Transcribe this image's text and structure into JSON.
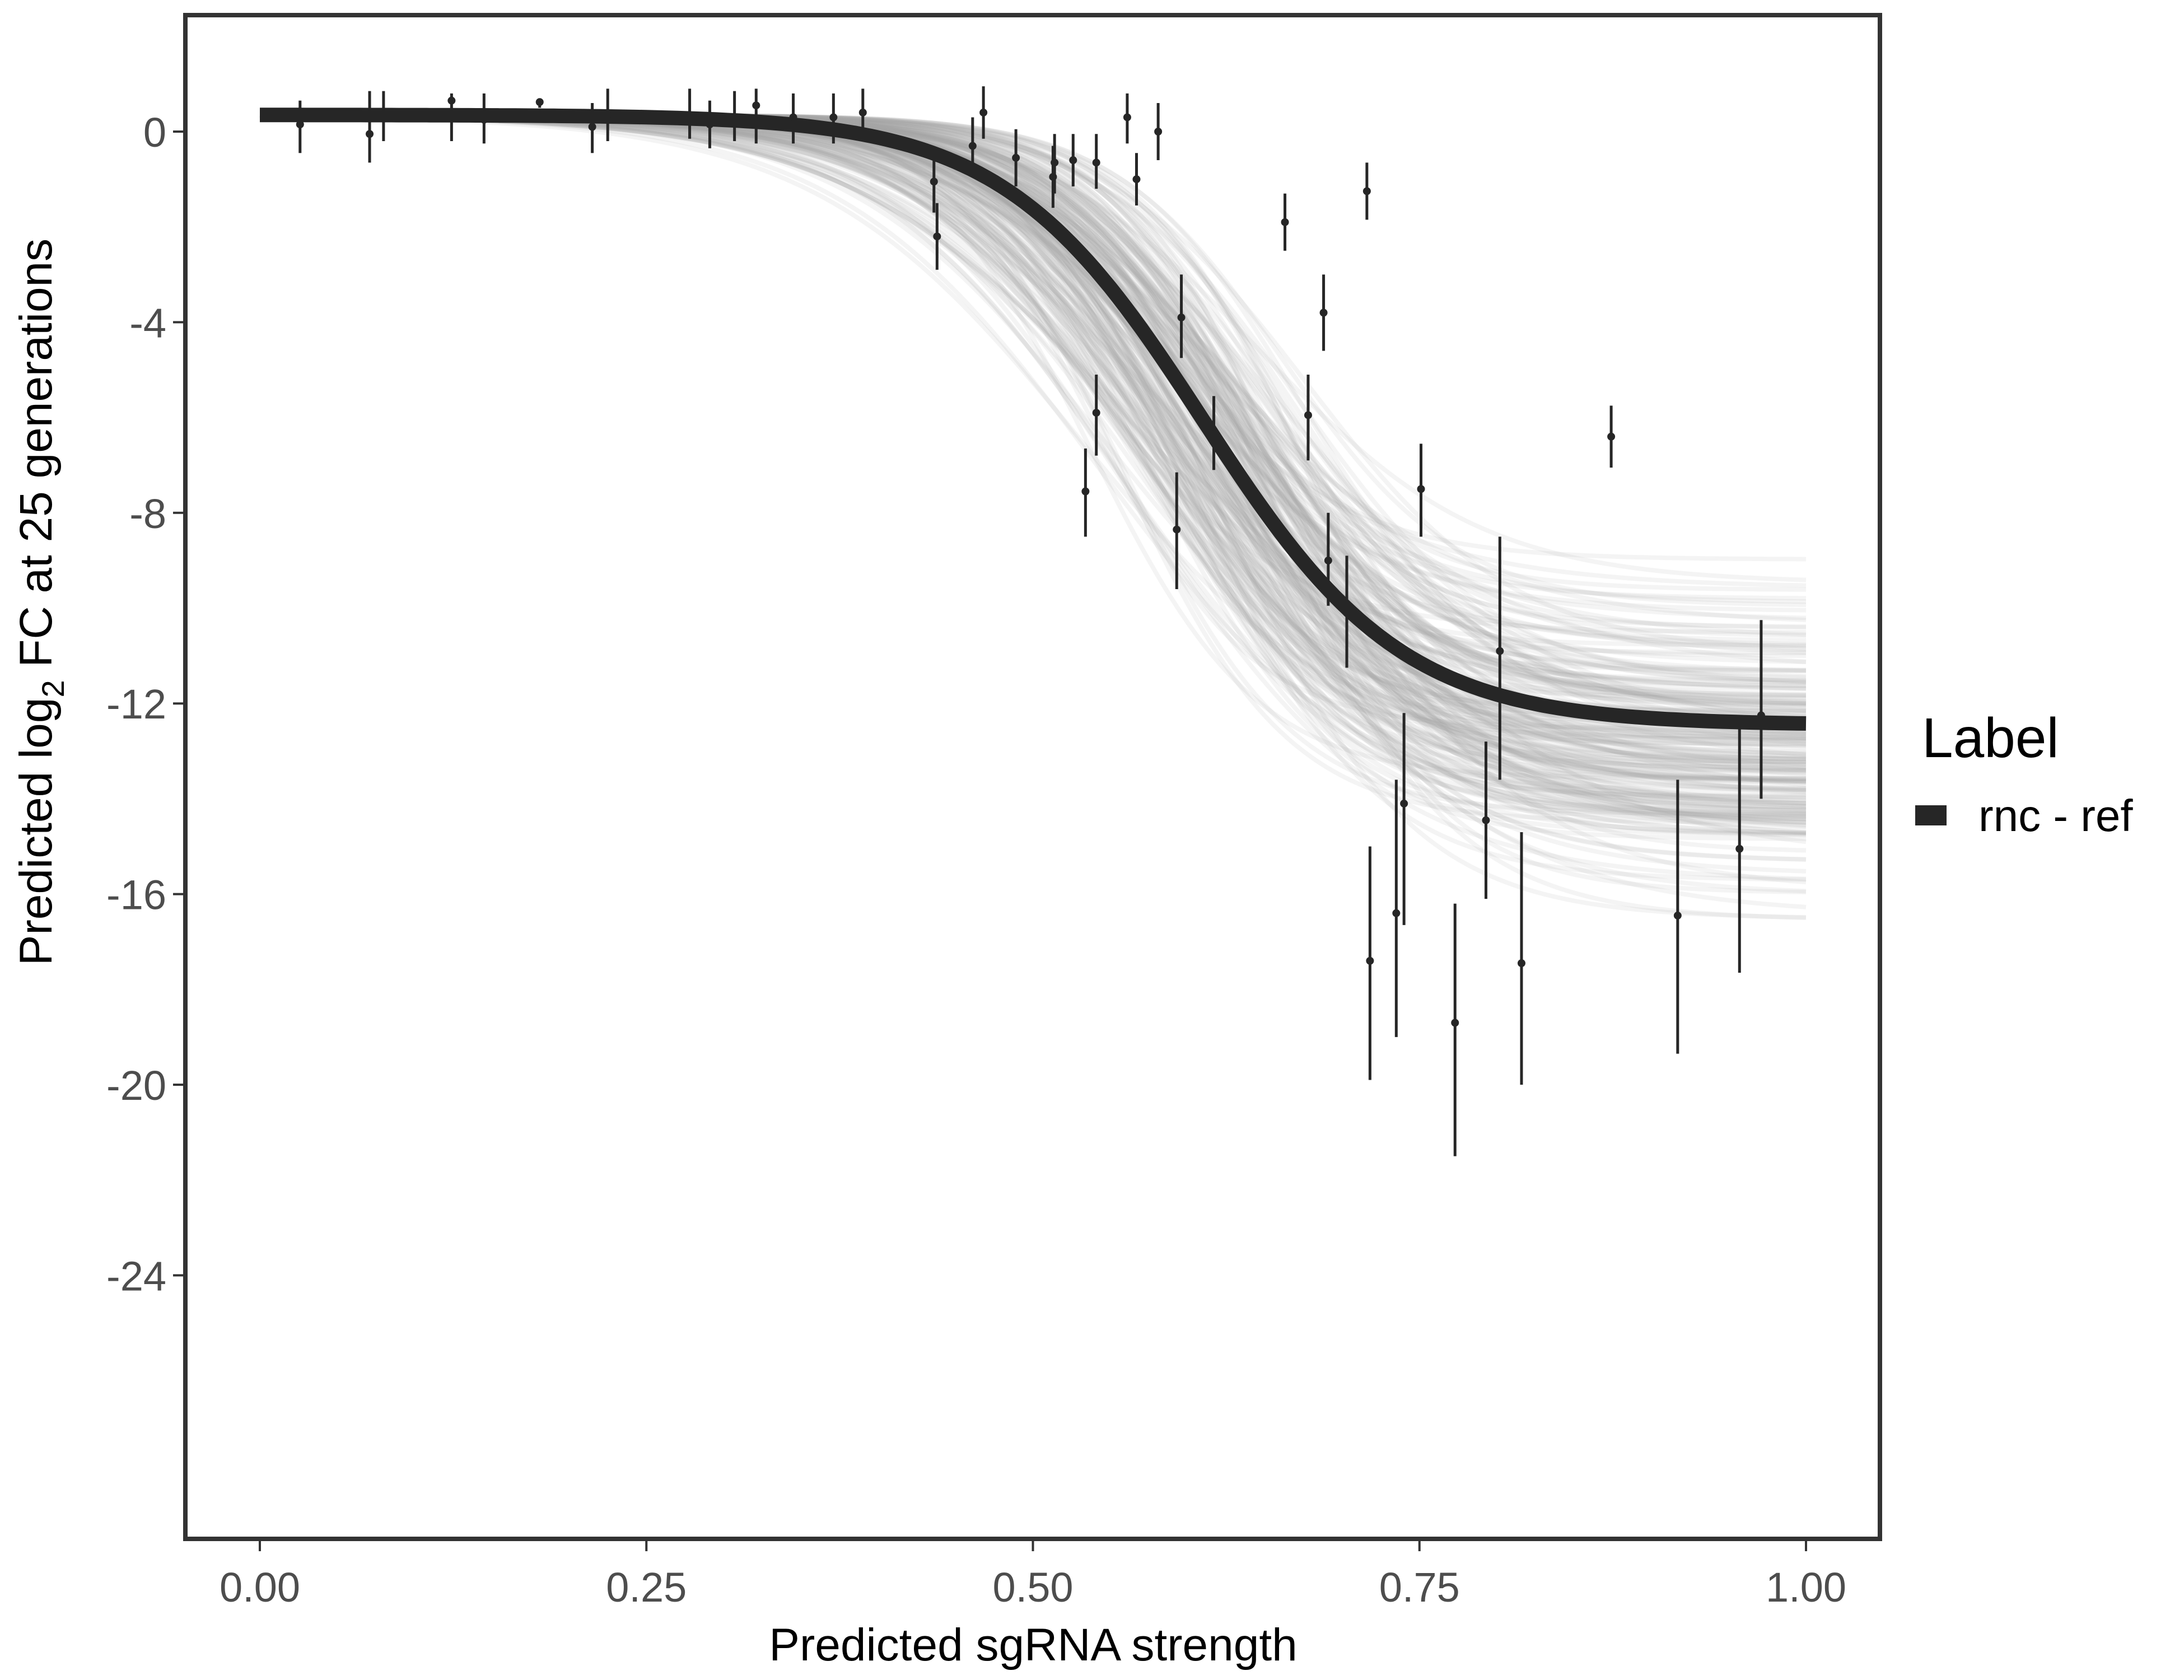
{
  "chart_data": {
    "type": "scatter",
    "title": "",
    "xlabel": "Predicted sgRNA strength",
    "ylabel_parts": {
      "pre": "Predicted  log",
      "sub": "2",
      "post": " FC at 25 generations"
    },
    "xlim": [
      -0.05,
      1.05
    ],
    "ylim": [
      -29.5,
      2.4
    ],
    "x_ticks": [
      0,
      0.25,
      0.5,
      0.75,
      1
    ],
    "x_tick_labels": [
      "0.00",
      "0.25",
      "0.50",
      "0.75",
      "1.00"
    ],
    "y_ticks": [
      0,
      -4,
      -8,
      -12,
      -16,
      -20,
      -24
    ],
    "y_tick_labels": [
      "0",
      "-4",
      "-8",
      "-12",
      "-16",
      "-20",
      "-24"
    ],
    "grid": false,
    "legend": {
      "title": "Label",
      "position": "right",
      "entries": [
        {
          "label": "rnc - ref",
          "color": "#262626"
        }
      ]
    },
    "colors": {
      "fit": "#262626",
      "band": "#a6a6a6",
      "points": "#262626",
      "frame": "#333333"
    },
    "fit_curve": {
      "model": "logistic",
      "upper": 0.35,
      "lower": -12.45,
      "midpoint": 0.61,
      "slope": 15.5
    },
    "posterior_draws": {
      "count": 220,
      "lower_range": [
        -17.6,
        -8.5
      ],
      "midpoint_range": [
        0.53,
        0.69
      ],
      "slope_range": [
        11,
        20
      ]
    },
    "points": [
      {
        "x": 0.026,
        "y": 0.15,
        "lo": -0.45,
        "hi": 0.65
      },
      {
        "x": 0.071,
        "y": -0.05,
        "lo": -0.65,
        "hi": 0.85
      },
      {
        "x": 0.08,
        "y": 0.3,
        "lo": -0.2,
        "hi": 0.85
      },
      {
        "x": 0.124,
        "y": 0.65,
        "lo": -0.2,
        "hi": 0.8
      },
      {
        "x": 0.145,
        "y": 0.25,
        "lo": -0.25,
        "hi": 0.8
      },
      {
        "x": 0.181,
        "y": 0.62,
        "lo": 0.5,
        "hi": 0.7
      },
      {
        "x": 0.215,
        "y": 0.1,
        "lo": -0.45,
        "hi": 0.6
      },
      {
        "x": 0.225,
        "y": 0.35,
        "lo": -0.2,
        "hi": 0.9
      },
      {
        "x": 0.278,
        "y": 0.35,
        "lo": -0.15,
        "hi": 0.9
      },
      {
        "x": 0.291,
        "y": 0.15,
        "lo": -0.35,
        "hi": 0.65
      },
      {
        "x": 0.307,
        "y": 0.3,
        "lo": -0.2,
        "hi": 0.85
      },
      {
        "x": 0.321,
        "y": 0.55,
        "lo": -0.25,
        "hi": 0.9
      },
      {
        "x": 0.345,
        "y": 0.3,
        "lo": -0.25,
        "hi": 0.8
      },
      {
        "x": 0.371,
        "y": 0.3,
        "lo": -0.25,
        "hi": 0.8
      },
      {
        "x": 0.39,
        "y": 0.4,
        "lo": -0.15,
        "hi": 0.9
      },
      {
        "x": 0.436,
        "y": -1.05,
        "lo": -1.7,
        "hi": -0.4
      },
      {
        "x": 0.438,
        "y": -2.2,
        "lo": -2.9,
        "hi": -1.5
      },
      {
        "x": 0.461,
        "y": -0.3,
        "lo": -0.85,
        "hi": 0.3
      },
      {
        "x": 0.468,
        "y": 0.4,
        "lo": -0.15,
        "hi": 0.95
      },
      {
        "x": 0.489,
        "y": -0.55,
        "lo": -1.15,
        "hi": 0.05
      },
      {
        "x": 0.513,
        "y": -0.95,
        "lo": -1.6,
        "hi": -0.3
      },
      {
        "x": 0.514,
        "y": -0.65,
        "lo": -1.3,
        "hi": -0.05
      },
      {
        "x": 0.526,
        "y": -0.6,
        "lo": -1.15,
        "hi": -0.05
      },
      {
        "x": 0.541,
        "y": -0.65,
        "lo": -1.2,
        "hi": -0.05
      },
      {
        "x": 0.561,
        "y": 0.3,
        "lo": -0.25,
        "hi": 0.8
      },
      {
        "x": 0.567,
        "y": -1.0,
        "lo": -1.55,
        "hi": -0.45
      },
      {
        "x": 0.581,
        "y": 0.0,
        "lo": -0.6,
        "hi": 0.6
      },
      {
        "x": 0.534,
        "y": -7.55,
        "lo": -8.5,
        "hi": -6.65
      },
      {
        "x": 0.541,
        "y": -5.9,
        "lo": -6.8,
        "hi": -5.1
      },
      {
        "x": 0.596,
        "y": -3.9,
        "lo": -4.75,
        "hi": -3.0
      },
      {
        "x": 0.593,
        "y": -8.35,
        "lo": -9.6,
        "hi": -7.15
      },
      {
        "x": 0.617,
        "y": -6.35,
        "lo": -7.1,
        "hi": -5.55
      },
      {
        "x": 0.663,
        "y": -1.9,
        "lo": -2.5,
        "hi": -1.3
      },
      {
        "x": 0.688,
        "y": -3.8,
        "lo": -4.6,
        "hi": -3.0
      },
      {
        "x": 0.678,
        "y": -5.95,
        "lo": -6.9,
        "hi": -5.1
      },
      {
        "x": 0.691,
        "y": -9.0,
        "lo": -9.95,
        "hi": -8.0
      },
      {
        "x": 0.703,
        "y": -10.1,
        "lo": -11.25,
        "hi": -8.9
      },
      {
        "x": 0.716,
        "y": -1.25,
        "lo": -1.85,
        "hi": -0.65
      },
      {
        "x": 0.718,
        "y": -17.4,
        "lo": -19.9,
        "hi": -15.0
      },
      {
        "x": 0.735,
        "y": -16.4,
        "lo": -19.0,
        "hi": -13.6
      },
      {
        "x": 0.74,
        "y": -14.1,
        "lo": -16.65,
        "hi": -12.2
      },
      {
        "x": 0.751,
        "y": -7.5,
        "lo": -8.5,
        "hi": -6.55
      },
      {
        "x": 0.773,
        "y": -18.7,
        "lo": -21.5,
        "hi": -16.2
      },
      {
        "x": 0.793,
        "y": -14.45,
        "lo": -16.1,
        "hi": -12.8
      },
      {
        "x": 0.802,
        "y": -10.9,
        "lo": -13.6,
        "hi": -8.5
      },
      {
        "x": 0.816,
        "y": -17.45,
        "lo": -20.0,
        "hi": -14.7
      },
      {
        "x": 0.874,
        "y": -6.4,
        "lo": -7.05,
        "hi": -5.75
      },
      {
        "x": 0.917,
        "y": -16.45,
        "lo": -19.35,
        "hi": -13.6
      },
      {
        "x": 0.957,
        "y": -15.05,
        "lo": -17.65,
        "hi": -12.4
      },
      {
        "x": 0.971,
        "y": -12.25,
        "lo": -14.0,
        "hi": -10.25
      }
    ]
  }
}
